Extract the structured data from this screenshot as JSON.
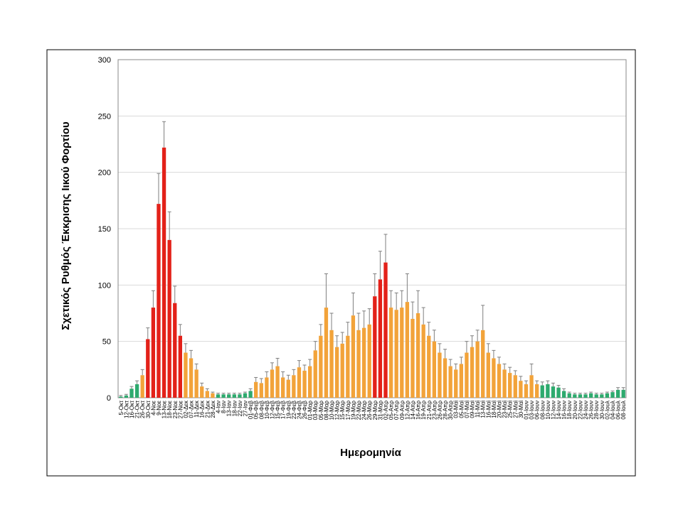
{
  "chart_data": {
    "type": "bar",
    "ylabel": "Σχετικός Ρυθμός Έκκρισης Ιικού Φορτίου",
    "xlabel": "Ημερομηνία",
    "categories": [
      "5-Οκτ",
      "12-Οκτ",
      "16-Οκτ",
      "21-Οκτ",
      "26-Οκτ",
      "30-Οκτ",
      "4-Νοε",
      "9-Νοε",
      "13-Νοε",
      "18-Νοε",
      "23-Νοε",
      "27-Νοε",
      "02-Δεκ",
      "07-Δεκ",
      "11-Δεκ",
      "16-Δεκ",
      "21-Δεκ",
      "28-Δεκ",
      "4-Ιαν",
      "8-Ιαν",
      "13-Ιαν",
      "18-Ιαν",
      "22-Ιαν",
      "27-Ιαν",
      "01-Φεβ",
      "05-Φεβ",
      "08-Φεβ",
      "10-Φεβ",
      "12-Φεβ",
      "15-Φεβ",
      "17-Φεβ",
      "19-Φεβ",
      "22-Φεβ",
      "24-Φεβ",
      "26-Φεβ",
      "01-Μαρ",
      "03-Μαρ",
      "05-Μαρ",
      "08-Μαρ",
      "10-Μαρ",
      "12-Μαρ",
      "15-Μαρ",
      "17-Μαρ",
      "19-Μαρ",
      "22-Μαρ",
      "24-Μαρ",
      "26-Μαρ",
      "29-Μαρ",
      "31-Μαρ",
      "02-Απρ",
      "05-Απρ",
      "07-Απρ",
      "09-Απρ",
      "12-Απρ",
      "14-Απρ",
      "16-Απρ",
      "19-Απρ",
      "21-Απρ",
      "23-Απρ",
      "26-Απρ",
      "28-Απρ",
      "30-Απρ",
      "03-Μαϊ",
      "05-Μαϊ",
      "07-Μαϊ",
      "09-Μαϊ",
      "11-Μαϊ",
      "13-Μαϊ",
      "16-Μαϊ",
      "18-Μαϊ",
      "20-Μαϊ",
      "23-Μαϊ",
      "25-Μαϊ",
      "27-Μαϊ",
      "30-Μαϊ",
      "01-Ιουν",
      "03-Ιουν",
      "06-Ιουν",
      "08-Ιουν",
      "10-Ιουν",
      "12-Ιουν",
      "14-Ιουν",
      "16-Ιουν",
      "18-Ιουν",
      "20-Ιουν",
      "22-Ιουν",
      "24-Ιουν",
      "26-Ιουν",
      "28-Ιουν",
      "30-Ιουν",
      "02-Ιουλ",
      "04-Ιουλ",
      "06-Ιουλ",
      "08-Ιουλ"
    ],
    "values": [
      1,
      2,
      8,
      12,
      20,
      52,
      80,
      172,
      222,
      140,
      84,
      55,
      40,
      35,
      25,
      10,
      6,
      4,
      3,
      3,
      3,
      3,
      3,
      4,
      6,
      14,
      13,
      18,
      25,
      28,
      18,
      16,
      20,
      27,
      24,
      28,
      42,
      55,
      80,
      60,
      45,
      48,
      55,
      73,
      60,
      62,
      65,
      90,
      105,
      120,
      80,
      78,
      80,
      85,
      70,
      75,
      65,
      55,
      50,
      40,
      35,
      28,
      25,
      30,
      40,
      45,
      50,
      60,
      40,
      35,
      30,
      25,
      22,
      20,
      15,
      12,
      20,
      12,
      11,
      12,
      10,
      9,
      6,
      4,
      3,
      3,
      3,
      4,
      3,
      3,
      4,
      5,
      7,
      7
    ],
    "errors": [
      1,
      1,
      2,
      3,
      5,
      10,
      15,
      27,
      23,
      25,
      15,
      10,
      8,
      7,
      5,
      3,
      2,
      1,
      1,
      1,
      1,
      1,
      1,
      1,
      2,
      4,
      4,
      5,
      6,
      7,
      5,
      4,
      5,
      6,
      5,
      6,
      8,
      10,
      30,
      15,
      10,
      10,
      12,
      20,
      15,
      15,
      14,
      20,
      25,
      25,
      15,
      15,
      15,
      25,
      15,
      20,
      15,
      12,
      10,
      8,
      8,
      6,
      5,
      6,
      10,
      10,
      10,
      22,
      8,
      7,
      6,
      5,
      5,
      4,
      4,
      3,
      10,
      3,
      3,
      3,
      3,
      2,
      2,
      1,
      1,
      1,
      1,
      1,
      1,
      1,
      1,
      1,
      2,
      2
    ],
    "colors": [
      "#2eaa6e",
      "#2eaa6e",
      "#2eaa6e",
      "#2eaa6e",
      "#f2a33a",
      "#e32119",
      "#e32119",
      "#e32119",
      "#e32119",
      "#e32119",
      "#e32119",
      "#e32119",
      "#f2a33a",
      "#f2a33a",
      "#f2a33a",
      "#f2a33a",
      "#f2a33a",
      "#f2a33a",
      "#2eaa6e",
      "#2eaa6e",
      "#2eaa6e",
      "#2eaa6e",
      "#2eaa6e",
      "#2eaa6e",
      "#2eaa6e",
      "#f2a33a",
      "#f2a33a",
      "#f2a33a",
      "#f2a33a",
      "#f2a33a",
      "#f2a33a",
      "#f2a33a",
      "#f2a33a",
      "#f2a33a",
      "#f2a33a",
      "#f2a33a",
      "#f2a33a",
      "#f2a33a",
      "#f2a33a",
      "#f2a33a",
      "#f2a33a",
      "#f2a33a",
      "#f2a33a",
      "#f2a33a",
      "#f2a33a",
      "#f2a33a",
      "#f2a33a",
      "#e32119",
      "#e32119",
      "#e32119",
      "#f2a33a",
      "#f2a33a",
      "#f2a33a",
      "#f2a33a",
      "#f2a33a",
      "#f2a33a",
      "#f2a33a",
      "#f2a33a",
      "#f2a33a",
      "#f2a33a",
      "#f2a33a",
      "#f2a33a",
      "#f2a33a",
      "#f2a33a",
      "#f2a33a",
      "#f2a33a",
      "#f2a33a",
      "#f2a33a",
      "#f2a33a",
      "#f2a33a",
      "#f2a33a",
      "#f2a33a",
      "#f2a33a",
      "#f2a33a",
      "#f2a33a",
      "#f2a33a",
      "#f2a33a",
      "#f2a33a",
      "#2eaa6e",
      "#2eaa6e",
      "#2eaa6e",
      "#2eaa6e",
      "#2eaa6e",
      "#2eaa6e",
      "#2eaa6e",
      "#2eaa6e",
      "#2eaa6e",
      "#2eaa6e",
      "#2eaa6e",
      "#2eaa6e",
      "#2eaa6e",
      "#2eaa6e",
      "#2eaa6e",
      "#2eaa6e"
    ],
    "ylim": [
      0,
      300
    ],
    "yticks": [
      0,
      50,
      100,
      150,
      200,
      250,
      300
    ],
    "grid": true
  }
}
